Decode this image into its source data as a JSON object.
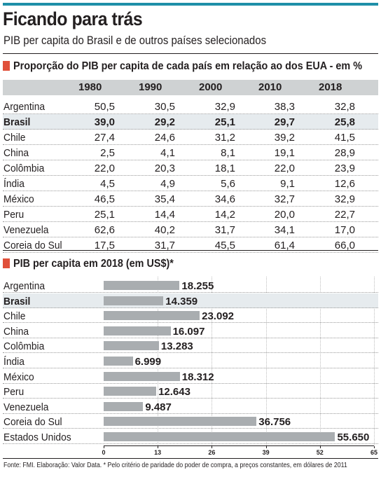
{
  "title": "Ficando para trás",
  "subtitle": "PIB per capita do Brasil e de outros países selecionados",
  "table": {
    "heading": "Proporção do PIB per capita de cada país em relação ao dos EUA - em %",
    "columns": [
      "1980",
      "1990",
      "2000",
      "2010",
      "2018"
    ],
    "rows": [
      {
        "country": "Argentina",
        "values": [
          "50,5",
          "30,5",
          "32,9",
          "38,3",
          "32,8"
        ]
      },
      {
        "country": "Brasil",
        "values": [
          "39,0",
          "29,2",
          "25,1",
          "29,7",
          "25,8"
        ]
      },
      {
        "country": "Chile",
        "values": [
          "27,4",
          "24,6",
          "31,2",
          "39,2",
          "41,5"
        ]
      },
      {
        "country": "China",
        "values": [
          "2,5",
          "4,1",
          "8,1",
          "19,1",
          "28,9"
        ]
      },
      {
        "country": "Colômbia",
        "values": [
          "22,0",
          "20,3",
          "18,1",
          "22,0",
          "23,9"
        ]
      },
      {
        "country": "Índia",
        "values": [
          "4,5",
          "4,9",
          "5,6",
          "9,1",
          "12,6"
        ]
      },
      {
        "country": "México",
        "values": [
          "46,5",
          "35,4",
          "34,6",
          "32,7",
          "32,9"
        ]
      },
      {
        "country": "Peru",
        "values": [
          "25,1",
          "14,4",
          "14,2",
          "20,0",
          "22,7"
        ]
      },
      {
        "country": "Venezuela",
        "values": [
          "62,6",
          "40,2",
          "31,7",
          "34,1",
          "17,0"
        ]
      },
      {
        "country": "Coreia do Sul",
        "values": [
          "17,5",
          "31,7",
          "45,5",
          "61,4",
          "66,0"
        ]
      }
    ],
    "highlight_row": "Brasil"
  },
  "chart_data": {
    "type": "bar",
    "title": "PIB per capita em 2018 (em US$)*",
    "categories": [
      "Argentina",
      "Brasil",
      "Chile",
      "China",
      "Colômbia",
      "Índia",
      "México",
      "Peru",
      "Venezuela",
      "Coreia do Sul",
      "Estados Unidos"
    ],
    "values": [
      18255,
      14359,
      23092,
      16097,
      13283,
      6999,
      18312,
      12643,
      9487,
      36756,
      55650
    ],
    "value_labels": [
      "18.255",
      "14.359",
      "23.092",
      "16.097",
      "13.283",
      "6.999",
      "18.312",
      "12.643",
      "9.487",
      "36.756",
      "55.650"
    ],
    "x_ticks": [
      "0",
      "13",
      "26",
      "39",
      "52",
      "65"
    ],
    "x_tick_values": [
      0,
      13000,
      26000,
      39000,
      52000,
      65000
    ],
    "xlim": [
      0,
      65000
    ],
    "orientation": "horizontal",
    "highlight": "Brasil",
    "bar_color": "#a9adb0"
  },
  "source": "Fonte: FMI. Elaboração: Valor Data. * Pelo critério de paridade do poder de compra, a preços constantes, em dólares de 2011",
  "colors": {
    "accent_bar": "#1f8fa8",
    "section_marker": "#e0503a",
    "header_bg": "#cfd2d3",
    "highlight_bg": "#e6ebee"
  }
}
